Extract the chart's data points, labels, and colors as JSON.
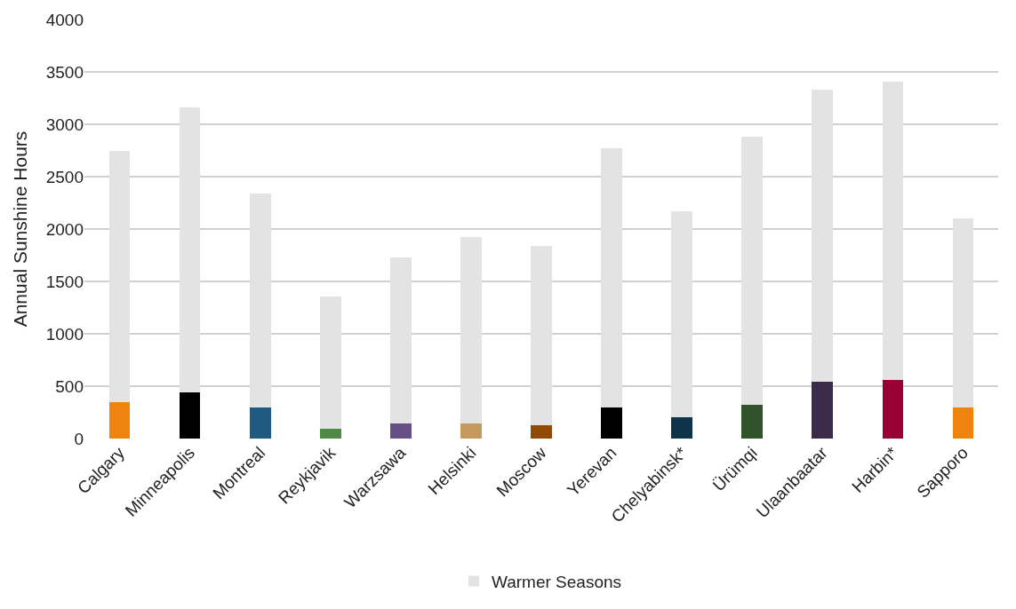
{
  "chart_data": {
    "type": "bar",
    "stacked": true,
    "ylabel": "Annual Sunshine Hours",
    "categories": [
      "Calgary",
      "Minneapolis",
      "Montreal",
      "Reykjavik",
      "Warzsawa",
      "Helsinki",
      "Moscow",
      "Yerevan",
      "Chelyabinsk*",
      "Ürümqi",
      "Ulaanbaatar",
      "Harbin*",
      "Sapporo"
    ],
    "series": [
      {
        "colors": [
          "#f0820f",
          "#000000",
          "#1f5a80",
          "#4e8a45",
          "#654f85",
          "#c49a5c",
          "#8f4a05",
          "#000000",
          "#0f3349",
          "#31532b",
          "#3b2a4a",
          "#9b0034",
          "#f0820f"
        ],
        "values": [
          350,
          440,
          300,
          90,
          140,
          140,
          130,
          300,
          200,
          320,
          540,
          560,
          300
        ]
      },
      {
        "name": "Warmer Seasons",
        "color": "#e3e3e3",
        "values": [
          2400,
          2720,
          2040,
          1270,
          1590,
          1780,
          1710,
          2470,
          1970,
          2560,
          2790,
          2850,
          1800
        ]
      }
    ],
    "ylim": [
      0,
      4000
    ],
    "yticks": [
      0,
      500,
      1000,
      1500,
      2000,
      2500,
      3000,
      3500,
      4000
    ],
    "grid": "y",
    "legend": "bottom"
  }
}
